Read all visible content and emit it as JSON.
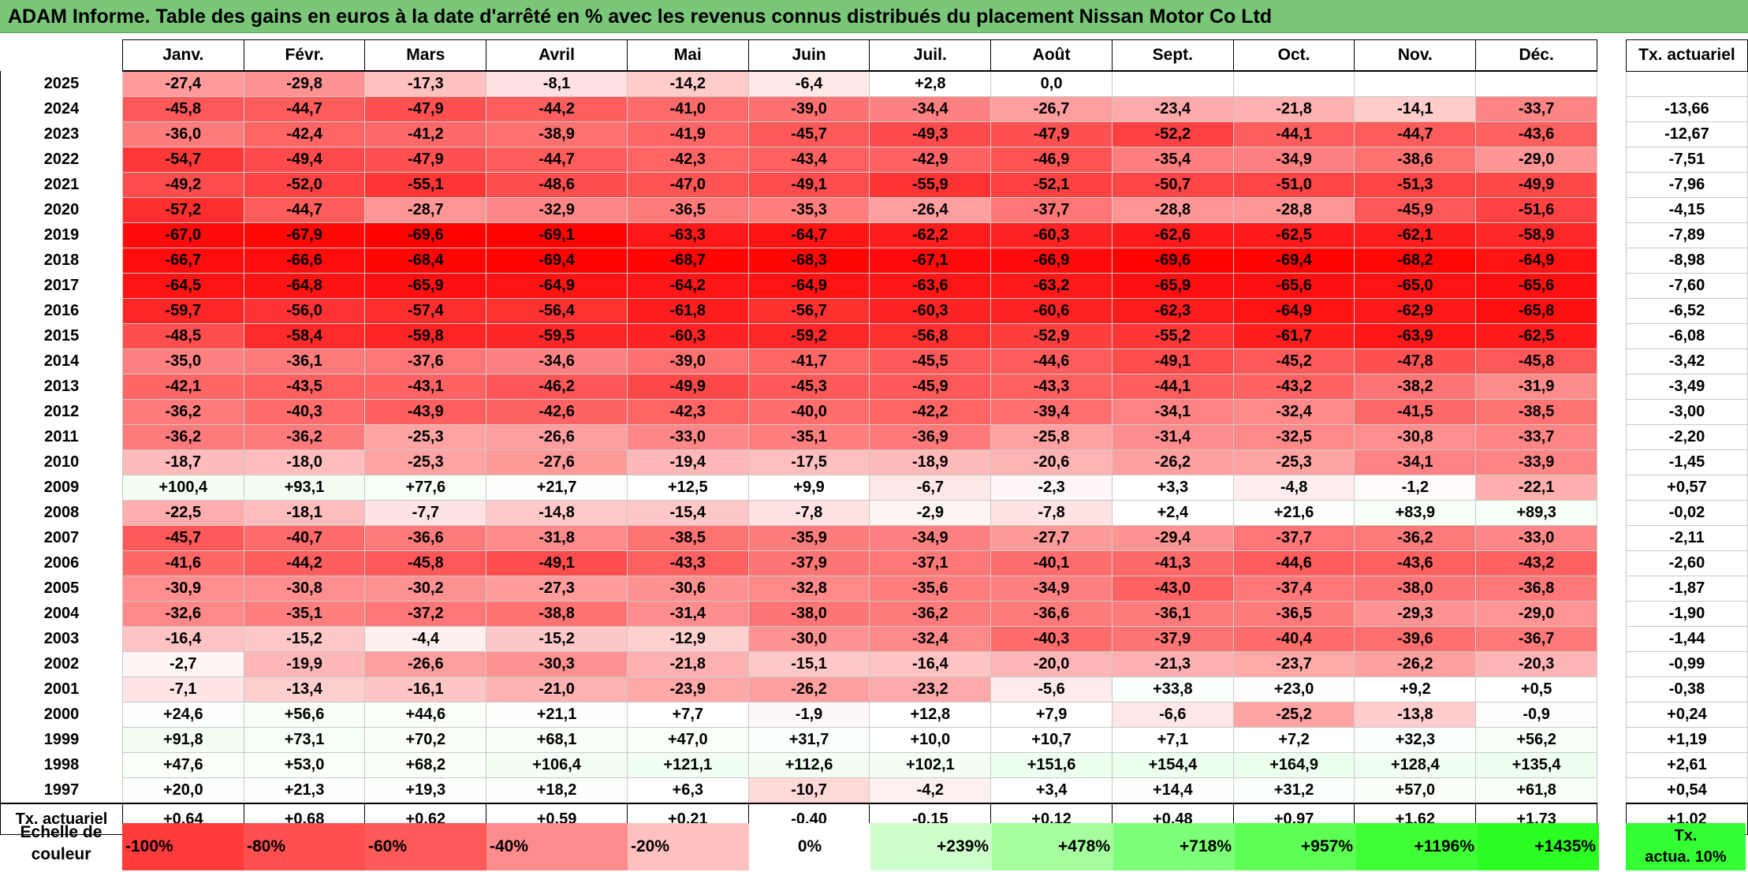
{
  "title": "ADAM Informe. Table des gains en euros à la date d'arrêté en % avec les revenus connus distribués du placement Nissan Motor Co Ltd",
  "months": [
    "Janv.",
    "Févr.",
    "Mars",
    "Avril",
    "Mai",
    "Juin",
    "Juil.",
    "Août",
    "Sept.",
    "Oct.",
    "Nov.",
    "Déc."
  ],
  "tx_header": "Tx. actuariel",
  "rows": [
    {
      "year": "2025",
      "values": [
        "-27,4",
        "-29,8",
        "-17,3",
        "-8,1",
        "-14,2",
        "-6,4",
        "+2,8",
        "0,0",
        "",
        "",
        "",
        ""
      ],
      "tx": ""
    },
    {
      "year": "2024",
      "values": [
        "-45,8",
        "-44,7",
        "-47,9",
        "-44,2",
        "-41,0",
        "-39,0",
        "-34,4",
        "-26,7",
        "-23,4",
        "-21,8",
        "-14,1",
        "-33,7"
      ],
      "tx": "-13,66"
    },
    {
      "year": "2023",
      "values": [
        "-36,0",
        "-42,4",
        "-41,2",
        "-38,9",
        "-41,9",
        "-45,7",
        "-49,3",
        "-47,9",
        "-52,2",
        "-44,1",
        "-44,7",
        "-43,6"
      ],
      "tx": "-12,67"
    },
    {
      "year": "2022",
      "values": [
        "-54,7",
        "-49,4",
        "-47,9",
        "-44,7",
        "-42,3",
        "-43,4",
        "-42,9",
        "-46,9",
        "-35,4",
        "-34,9",
        "-38,6",
        "-29,0"
      ],
      "tx": "-7,51"
    },
    {
      "year": "2021",
      "values": [
        "-49,2",
        "-52,0",
        "-55,1",
        "-48,6",
        "-47,0",
        "-49,1",
        "-55,9",
        "-52,1",
        "-50,7",
        "-51,0",
        "-51,3",
        "-49,9"
      ],
      "tx": "-7,96"
    },
    {
      "year": "2020",
      "values": [
        "-57,2",
        "-44,7",
        "-28,7",
        "-32,9",
        "-36,5",
        "-35,3",
        "-26,4",
        "-37,7",
        "-28,8",
        "-28,8",
        "-45,9",
        "-51,6"
      ],
      "tx": "-4,15"
    },
    {
      "year": "2019",
      "values": [
        "-67,0",
        "-67,9",
        "-69,6",
        "-69,1",
        "-63,3",
        "-64,7",
        "-62,2",
        "-60,3",
        "-62,6",
        "-62,5",
        "-62,1",
        "-58,9"
      ],
      "tx": "-7,89"
    },
    {
      "year": "2018",
      "values": [
        "-66,7",
        "-66,6",
        "-68,4",
        "-69,4",
        "-68,7",
        "-68,3",
        "-67,1",
        "-66,9",
        "-69,6",
        "-69,4",
        "-68,2",
        "-64,9"
      ],
      "tx": "-8,98"
    },
    {
      "year": "2017",
      "values": [
        "-64,5",
        "-64,8",
        "-65,9",
        "-64,9",
        "-64,2",
        "-64,9",
        "-63,6",
        "-63,2",
        "-65,9",
        "-65,6",
        "-65,0",
        "-65,6"
      ],
      "tx": "-7,60"
    },
    {
      "year": "2016",
      "values": [
        "-59,7",
        "-56,0",
        "-57,4",
        "-56,4",
        "-61,8",
        "-56,7",
        "-60,3",
        "-60,6",
        "-62,3",
        "-64,9",
        "-62,9",
        "-65,8"
      ],
      "tx": "-6,52"
    },
    {
      "year": "2015",
      "values": [
        "-48,5",
        "-58,4",
        "-59,8",
        "-59,5",
        "-60,3",
        "-59,2",
        "-56,8",
        "-52,9",
        "-55,2",
        "-61,7",
        "-63,9",
        "-62,5"
      ],
      "tx": "-6,08"
    },
    {
      "year": "2014",
      "values": [
        "-35,0",
        "-36,1",
        "-37,6",
        "-34,6",
        "-39,0",
        "-41,7",
        "-45,5",
        "-44,6",
        "-49,1",
        "-45,2",
        "-47,8",
        "-45,8"
      ],
      "tx": "-3,42"
    },
    {
      "year": "2013",
      "values": [
        "-42,1",
        "-43,5",
        "-43,1",
        "-46,2",
        "-49,9",
        "-45,3",
        "-45,9",
        "-43,3",
        "-44,1",
        "-43,2",
        "-38,2",
        "-31,9"
      ],
      "tx": "-3,49"
    },
    {
      "year": "2012",
      "values": [
        "-36,2",
        "-40,3",
        "-43,9",
        "-42,6",
        "-42,3",
        "-40,0",
        "-42,2",
        "-39,4",
        "-34,1",
        "-32,4",
        "-41,5",
        "-38,5"
      ],
      "tx": "-3,00"
    },
    {
      "year": "2011",
      "values": [
        "-36,2",
        "-36,2",
        "-25,3",
        "-26,6",
        "-33,0",
        "-35,1",
        "-36,9",
        "-25,8",
        "-31,4",
        "-32,5",
        "-30,8",
        "-33,7"
      ],
      "tx": "-2,20"
    },
    {
      "year": "2010",
      "values": [
        "-18,7",
        "-18,0",
        "-25,3",
        "-27,6",
        "-19,4",
        "-17,5",
        "-18,9",
        "-20,6",
        "-26,2",
        "-25,3",
        "-34,1",
        "-33,9"
      ],
      "tx": "-1,45"
    },
    {
      "year": "2009",
      "values": [
        "+100,4",
        "+93,1",
        "+77,6",
        "+21,7",
        "+12,5",
        "+9,9",
        "-6,7",
        "-2,3",
        "+3,3",
        "-4,8",
        "-1,2",
        "-22,1"
      ],
      "tx": "+0,57"
    },
    {
      "year": "2008",
      "values": [
        "-22,5",
        "-18,1",
        "-7,7",
        "-14,8",
        "-15,4",
        "-7,8",
        "-2,9",
        "-7,8",
        "+2,4",
        "+21,6",
        "+83,9",
        "+89,3"
      ],
      "tx": "-0,02"
    },
    {
      "year": "2007",
      "values": [
        "-45,7",
        "-40,7",
        "-36,6",
        "-31,8",
        "-38,5",
        "-35,9",
        "-34,9",
        "-27,7",
        "-29,4",
        "-37,7",
        "-36,2",
        "-33,0"
      ],
      "tx": "-2,11"
    },
    {
      "year": "2006",
      "values": [
        "-41,6",
        "-44,2",
        "-45,8",
        "-49,1",
        "-43,3",
        "-37,9",
        "-37,1",
        "-40,1",
        "-41,3",
        "-44,6",
        "-43,6",
        "-43,2"
      ],
      "tx": "-2,60"
    },
    {
      "year": "2005",
      "values": [
        "-30,9",
        "-30,8",
        "-30,2",
        "-27,3",
        "-30,6",
        "-32,8",
        "-35,6",
        "-34,9",
        "-43,0",
        "-37,4",
        "-38,0",
        "-36,8"
      ],
      "tx": "-1,87"
    },
    {
      "year": "2004",
      "values": [
        "-32,6",
        "-35,1",
        "-37,2",
        "-38,8",
        "-31,4",
        "-38,0",
        "-36,2",
        "-36,6",
        "-36,1",
        "-36,5",
        "-29,3",
        "-29,0"
      ],
      "tx": "-1,90"
    },
    {
      "year": "2003",
      "values": [
        "-16,4",
        "-15,2",
        "-4,4",
        "-15,2",
        "-12,9",
        "-30,0",
        "-32,4",
        "-40,3",
        "-37,9",
        "-40,4",
        "-39,6",
        "-36,7"
      ],
      "tx": "-1,44"
    },
    {
      "year": "2002",
      "values": [
        "-2,7",
        "-19,9",
        "-26,6",
        "-30,3",
        "-21,8",
        "-15,1",
        "-16,4",
        "-20,0",
        "-21,3",
        "-23,7",
        "-26,2",
        "-20,3"
      ],
      "tx": "-0,99"
    },
    {
      "year": "2001",
      "values": [
        "-7,1",
        "-13,4",
        "-16,1",
        "-21,0",
        "-23,9",
        "-26,2",
        "-23,2",
        "-5,6",
        "+33,8",
        "+23,0",
        "+9,2",
        "+0,5"
      ],
      "tx": "-0,38"
    },
    {
      "year": "2000",
      "values": [
        "+24,6",
        "+56,6",
        "+44,6",
        "+21,1",
        "+7,7",
        "-1,9",
        "+12,8",
        "+7,9",
        "-6,6",
        "-25,2",
        "-13,8",
        "-0,9"
      ],
      "tx": "+0,24"
    },
    {
      "year": "1999",
      "values": [
        "+91,8",
        "+73,1",
        "+70,2",
        "+68,1",
        "+47,0",
        "+31,7",
        "+10,0",
        "+10,7",
        "+7,1",
        "+7,2",
        "+32,3",
        "+56,2"
      ],
      "tx": "+1,19"
    },
    {
      "year": "1998",
      "values": [
        "+47,6",
        "+53,0",
        "+68,2",
        "+106,4",
        "+121,1",
        "+112,6",
        "+102,1",
        "+151,6",
        "+154,4",
        "+164,9",
        "+128,4",
        "+135,4"
      ],
      "tx": "+2,61"
    },
    {
      "year": "1997",
      "values": [
        "+20,0",
        "+21,3",
        "+19,3",
        "+18,2",
        "+6,3",
        "-10,7",
        "-4,2",
        "+3,4",
        "+14,4",
        "+31,2",
        "+57,0",
        "+61,8"
      ],
      "tx": "+0,54"
    }
  ],
  "footer": {
    "label": "Tx. actuariel",
    "values": [
      "+0,64",
      "+0,68",
      "+0,62",
      "+0,59",
      "+0,21",
      "-0,40",
      "-0,15",
      "+0,12",
      "+0,48",
      "+0,97",
      "+1,62",
      "+1,73"
    ],
    "tx": "+1,02"
  },
  "scale": {
    "label_line1": "Echelle de",
    "label_line2": "couleur",
    "items": [
      {
        "label": "-100%",
        "color": "#ff3b3b"
      },
      {
        "label": "-80%",
        "color": "#ff4f4f"
      },
      {
        "label": "-60%",
        "color": "#ff5a5a"
      },
      {
        "label": "-40%",
        "color": "#ff8c8c"
      },
      {
        "label": "-20%",
        "color": "#ffc0c0"
      },
      {
        "label": "0%",
        "color": "#ffffff"
      },
      {
        "label": "+239%",
        "color": "#ccffcc"
      },
      {
        "label": "+478%",
        "color": "#a6ff9f"
      },
      {
        "label": "+718%",
        "color": "#7dff78"
      },
      {
        "label": "+957%",
        "color": "#5eff55"
      },
      {
        "label": "+1196%",
        "color": "#3fff35"
      },
      {
        "label": "+1435%",
        "color": "#2cff22"
      }
    ],
    "tx_line1": "Tx.",
    "tx_line2": "actua. 10%",
    "tx_color": "#33ff33"
  }
}
